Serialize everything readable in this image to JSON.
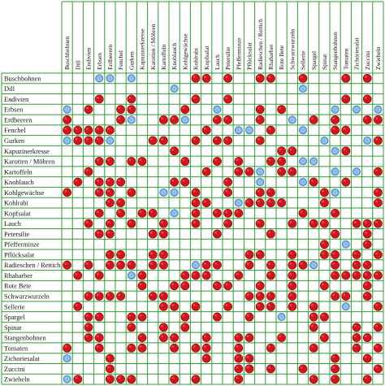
{
  "chart_data": {
    "type": "table",
    "plants": [
      "Buschbohnen",
      "Dill",
      "Endivien",
      "Erbsen",
      "Erdbeeren",
      "Fenchel",
      "Gurken",
      "Kapuzinerkresse",
      "Karotten / Möhren",
      "Kartoffeln",
      "Knoblauch",
      "Kohlgewächse",
      "Kohlrabi",
      "Kopfsalat",
      "Lauch",
      "Petersilie",
      "Pfefferminze",
      "Pflücksalat",
      "Radieschen / Rettich",
      "Rhabarber",
      "Rote Bete",
      "Schwarzwurzeln",
      "Sellerie",
      "Spargel",
      "Spinat",
      "Stangenbohnen",
      "Tomaten",
      "Zichoriesalat",
      "Zuccini",
      "Zwiebeln"
    ],
    "legend_values": {
      "G": "good neighbour (red dot)",
      "B": "bad neighbour (blue dot)",
      ".": "no mark"
    },
    "matrix": [
      "...BB.B.....RR.R..RR..R...R.G.",
      "..........B...........B.......",
      "...R..R.....G..R..........R.R.",
      "B.R..RR....R..B...R.R....B.B.B",
      "G....RB..GGB..RR..R..B.R.G..RG",
      "RRRRR........G..BB.R..B..GR...",
      "BGRRB...GG..G.RR..G.....B...BR",
      "..........R.........RR...BR...",
      "...RR.RR...R..R.R..GG.BB......",
      "..R..........R..GGB.RR...B.B.R",
      ".R.RRR....GG...R..B...BR..R...",
      "G..RR.G..BB.R..R..RR....RB...G",
      "....RG......GG..BRRRR...G....G",
      "...R.R.GG.B.R.RRR.....G..R....",
      "..R.R.R..R..G..R..R..R.RG..RGR",
      "...RR...GG....R....G.....R..R.",
      "........................R.B.R.",
      "....RR..GG.......RR..G..RR.G.G",
      "G.R.RRG.RR..BRR..R.R.RRB.R.RR.",
      ".R.R..BR...GGG..R..G.R...GGGRR",
      ".......G..GR..GR..R..G..G...R.",
      "..GRRR..GG.......GRG.G...RG.R.",
      ".R.......RR.G..R..RR.R.G..B..G",
      "..RR..RG...R..R..G..B..RR.....",
      "..G...R..G.G...........R...R.G",
      "..RR...R.GG..G..RR..R...R..GR.",
      "R..G..GG..G.RR..R..G...R...R.R",
      "B...G........R..RR.......R..R.",
      "....R...........GR.R..R..R...R",
      "BR..RRG...R.R...R......R.G..R."
    ]
  }
}
